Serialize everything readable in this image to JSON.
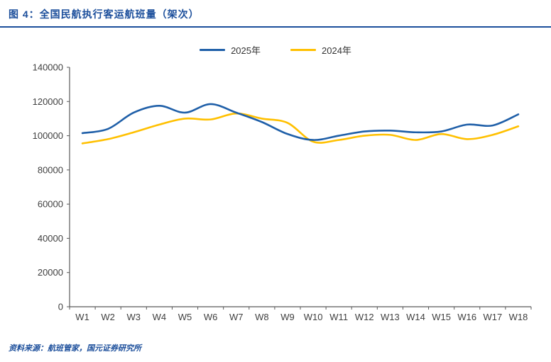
{
  "header": {
    "title": "图 4：全国民航执行客运航班量（架次）"
  },
  "footer": {
    "source": "资料来源：航班管家，国元证券研究所"
  },
  "colors": {
    "accent_blue": "#1b4e9b",
    "series_2025": "#1f5fa8",
    "series_2024": "#ffc000",
    "axis": "#595959",
    "tick_text": "#404040"
  },
  "chart_data": {
    "type": "line",
    "title": "图 4：全国民航执行客运航班量（架次）",
    "xlabel": "",
    "ylabel": "",
    "categories": [
      "W1",
      "W2",
      "W3",
      "W4",
      "W5",
      "W6",
      "W7",
      "W8",
      "W9",
      "W10",
      "W11",
      "W12",
      "W13",
      "W14",
      "W15",
      "W16",
      "W17",
      "W18"
    ],
    "series": [
      {
        "name": "2025年",
        "color": "#1f5fa8",
        "values": [
          101500,
          104000,
          113500,
          117500,
          113500,
          118500,
          113500,
          108000,
          101000,
          97500,
          100000,
          102500,
          103000,
          102000,
          102500,
          106500,
          106000,
          112500
        ]
      },
      {
        "name": "2024年",
        "color": "#ffc000",
        "values": [
          95500,
          98000,
          102000,
          106500,
          110000,
          109500,
          113000,
          110000,
          107500,
          96500,
          97500,
          100000,
          100500,
          97500,
          101000,
          98000,
          100500,
          105500
        ]
      }
    ],
    "ylim": [
      0,
      140000
    ],
    "yticks": [
      0,
      20000,
      40000,
      60000,
      80000,
      100000,
      120000,
      140000
    ],
    "grid": false,
    "legend_position": "top"
  }
}
